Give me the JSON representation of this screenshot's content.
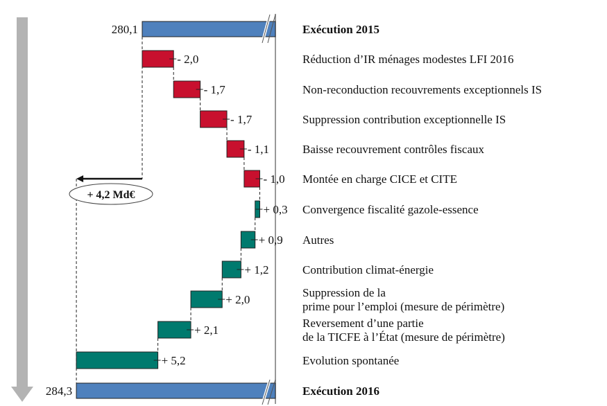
{
  "chart_data": {
    "type": "bar",
    "subtype": "waterfall-horizontal",
    "title": "",
    "xlabel": "",
    "ylabel": "",
    "grid": false,
    "legend": "none",
    "units": "Md€",
    "start": {
      "label": "Exécution 2015",
      "value": 280.1,
      "value_label": "280,1"
    },
    "end": {
      "label": "Exécution 2016",
      "value": 284.3,
      "value_label": "284,3"
    },
    "steps": [
      {
        "label": "Réduction d’IR ménages modestes LFI 2016",
        "value": -2.0,
        "value_label": "- 2,0"
      },
      {
        "label": "Non-reconduction  recouvrements exceptionnels IS",
        "value": -1.7,
        "value_label": "- 1,7"
      },
      {
        "label": "Suppression contribution exceptionnelle IS",
        "value": -1.7,
        "value_label": "- 1,7"
      },
      {
        "label": "Baisse recouvrement contrôles fiscaux",
        "value": -1.1,
        "value_label": "- 1,1"
      },
      {
        "label": "Montée en charge CICE et CITE",
        "value": -1.0,
        "value_label": "- 1,0"
      },
      {
        "label": "Convergence fiscalité gazole-essence",
        "value": 0.3,
        "value_label": "+ 0,3"
      },
      {
        "label": "Autres",
        "value": 0.9,
        "value_label": "+ 0,9"
      },
      {
        "label": "Contribution climat-énergie",
        "value": 1.2,
        "value_label": "+ 1,2"
      },
      {
        "label": "Suppression de la\nprime pour l’emploi (mesure de périmètre)",
        "value": 2.0,
        "value_label": "+ 2,0"
      },
      {
        "label": "Reversement d’une partie\nde la TICFE à l’État (mesure de périmètre)",
        "value": 2.1,
        "value_label": "+ 2,1"
      },
      {
        "label": "Evolution spontanée",
        "value": 5.2,
        "value_label": "+ 5,2"
      }
    ],
    "annotation": {
      "text": "+ 4,2 Md€",
      "value": 4.2
    },
    "colors": {
      "total": "#4f81bd",
      "negative": "#c8102e",
      "positive": "#007a6e",
      "arrow": "#b3b3b3"
    }
  }
}
